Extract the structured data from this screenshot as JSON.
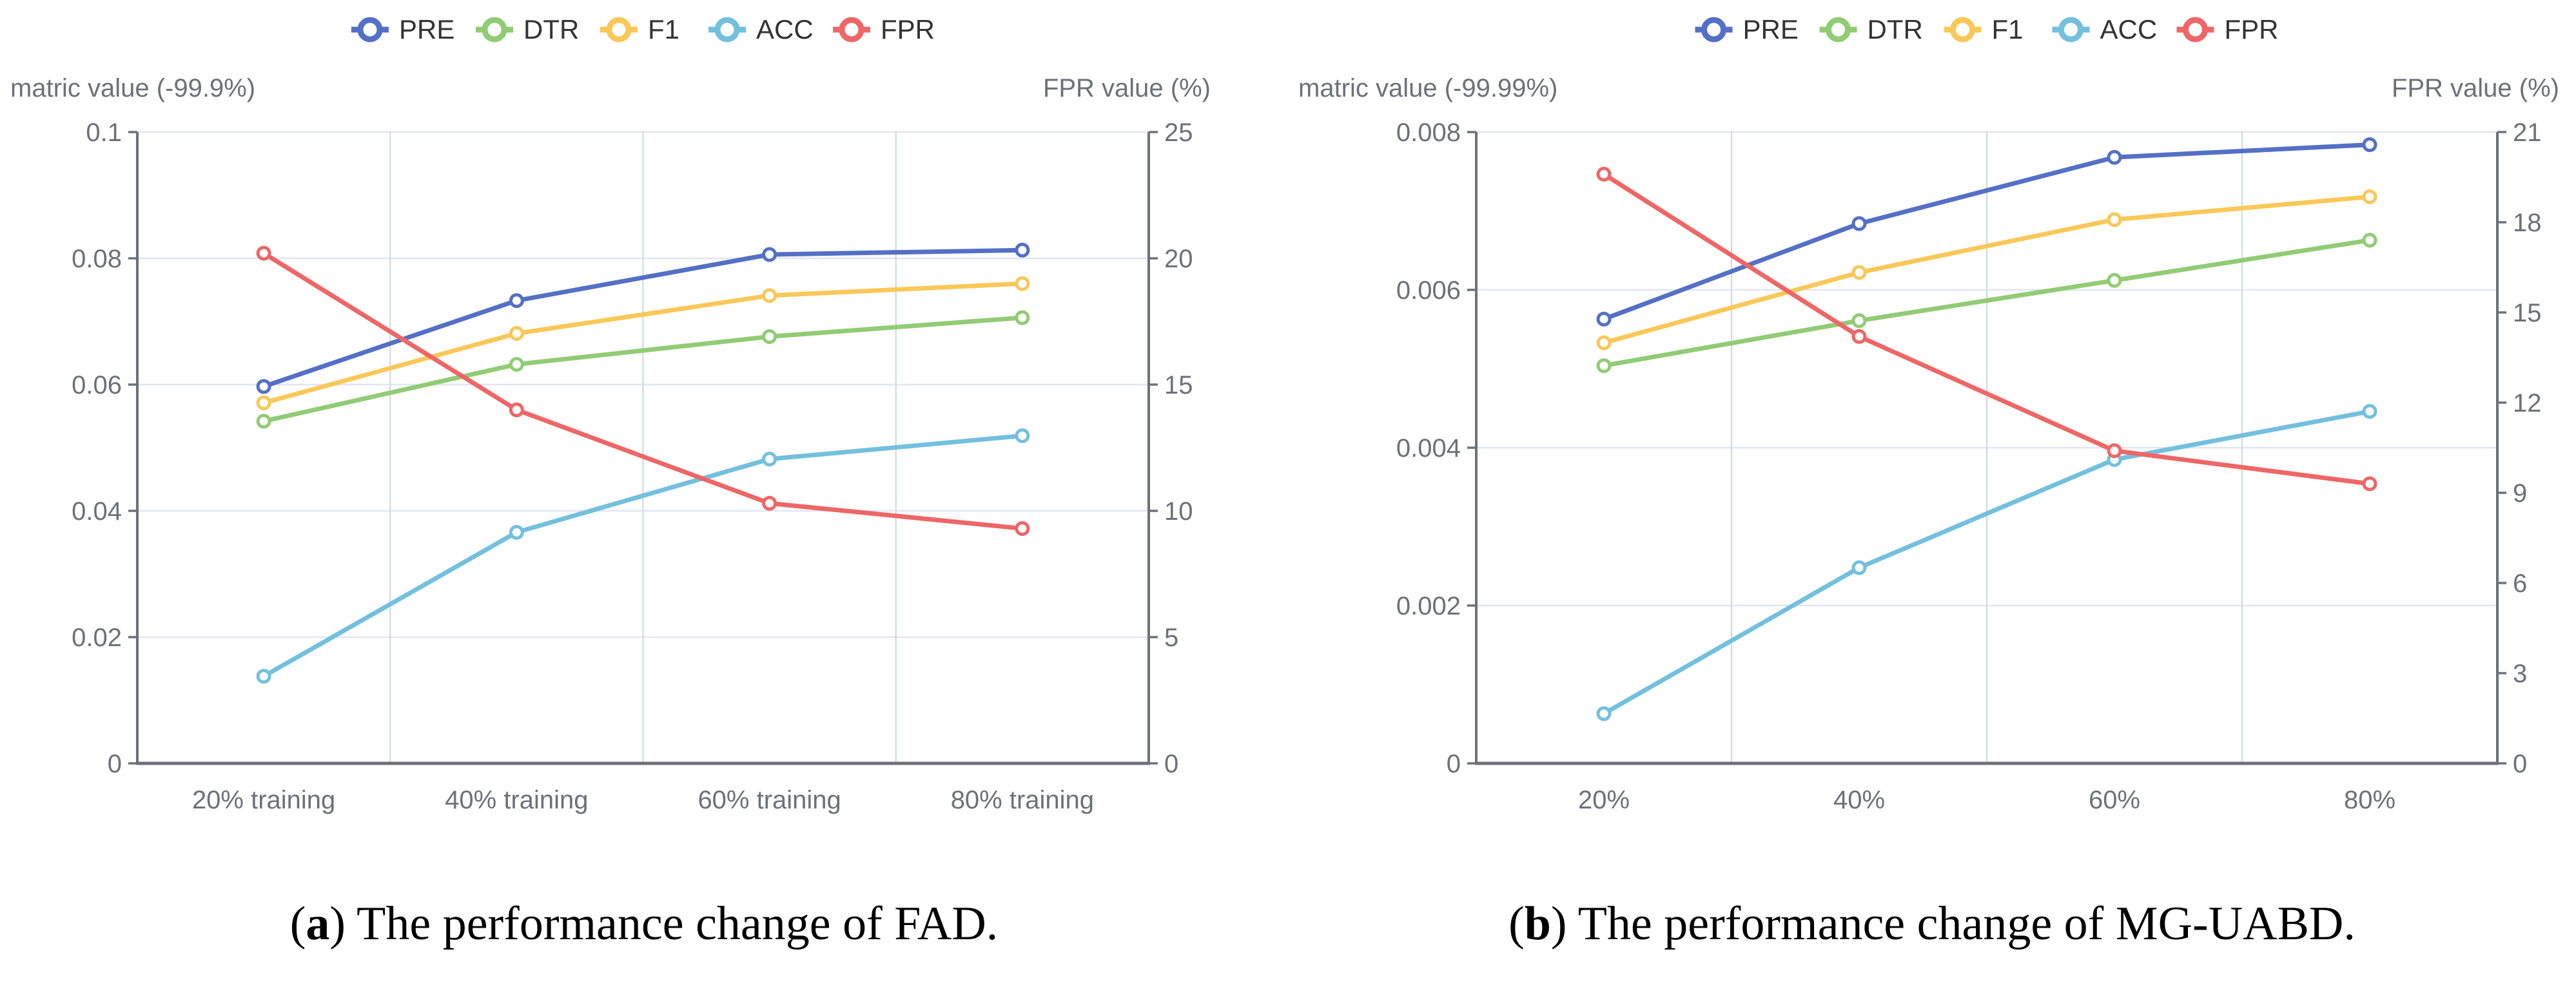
{
  "captions": {
    "a": {
      "open": "(",
      "letter": "a",
      "rest": ") The performance change of FAD."
    },
    "b": {
      "open": "(",
      "letter": "b",
      "rest": ") The performance change of MG-UABD."
    }
  },
  "palette": {
    "PRE": "#5470c6",
    "DTR": "#91cc75",
    "F1": "#fac858",
    "ACC": "#73c0de",
    "FPR": "#ee6666"
  },
  "style_colors": {
    "axis_line": "#6E7079",
    "axis_text": "#6E7079",
    "legend_text": "#333333",
    "grid_h": "#E0E6F1",
    "grid_v": "#d4dae6",
    "marker_fill": "#ffffff",
    "background": "#ffffff"
  },
  "chart_data": [
    {
      "id": "fad",
      "type": "line",
      "caption": "(a) The performance change of FAD.",
      "legend": [
        "PRE",
        "DTR",
        "F1",
        "ACC",
        "FPR"
      ],
      "categories": [
        "20% training",
        "40% training",
        "60% training",
        "80% training"
      ],
      "left_axis": {
        "label": "matric value (-99.9%)",
        "min": 0,
        "max": 0.1,
        "tick_labels": [
          "0",
          "0.02",
          "0.04",
          "0.06",
          "0.08",
          "0.1"
        ]
      },
      "right_axis": {
        "label": "FPR value (%)",
        "min": 0,
        "max": 25,
        "tick_labels": [
          "0",
          "5",
          "10",
          "15",
          "20",
          "25"
        ]
      },
      "series": [
        {
          "name": "PRE",
          "axis": "left",
          "values": [
            0.0597,
            0.0733,
            0.0806,
            0.0813
          ]
        },
        {
          "name": "DTR",
          "axis": "left",
          "values": [
            0.0542,
            0.0632,
            0.0676,
            0.0706
          ]
        },
        {
          "name": "F1",
          "axis": "left",
          "values": [
            0.0571,
            0.0681,
            0.0741,
            0.076
          ]
        },
        {
          "name": "ACC",
          "axis": "left",
          "values": [
            0.0138,
            0.0366,
            0.0482,
            0.0519
          ]
        },
        {
          "name": "FPR",
          "axis": "right",
          "values": [
            20.2,
            14.0,
            10.3,
            9.3
          ]
        }
      ]
    },
    {
      "id": "mg-uabd",
      "type": "line",
      "caption": "(b) The performance change of MG-UABD.",
      "legend": [
        "PRE",
        "DTR",
        "F1",
        "ACC",
        "FPR"
      ],
      "categories": [
        "20%",
        "40%",
        "60%",
        "80%"
      ],
      "left_axis": {
        "label": "matric value (-99.99%)",
        "min": 0,
        "max": 0.008,
        "tick_labels": [
          "0",
          "0.002",
          "0.004",
          "0.006",
          "0.008"
        ]
      },
      "right_axis": {
        "label": "FPR value (%)",
        "min": 0,
        "max": 21,
        "tick_labels": [
          "0",
          "3",
          "6",
          "9",
          "12",
          "15",
          "18",
          "21"
        ]
      },
      "series": [
        {
          "name": "PRE",
          "axis": "left",
          "values": [
            0.00563,
            0.00684,
            0.00768,
            0.00784
          ]
        },
        {
          "name": "DTR",
          "axis": "left",
          "values": [
            0.00504,
            0.00561,
            0.00612,
            0.00663
          ]
        },
        {
          "name": "F1",
          "axis": "left",
          "values": [
            0.00533,
            0.00622,
            0.00689,
            0.00718
          ]
        },
        {
          "name": "ACC",
          "axis": "left",
          "values": [
            0.00063,
            0.00248,
            0.00385,
            0.00446
          ]
        },
        {
          "name": "FPR",
          "axis": "right",
          "values": [
            19.6,
            14.2,
            10.4,
            9.3
          ]
        }
      ]
    }
  ]
}
